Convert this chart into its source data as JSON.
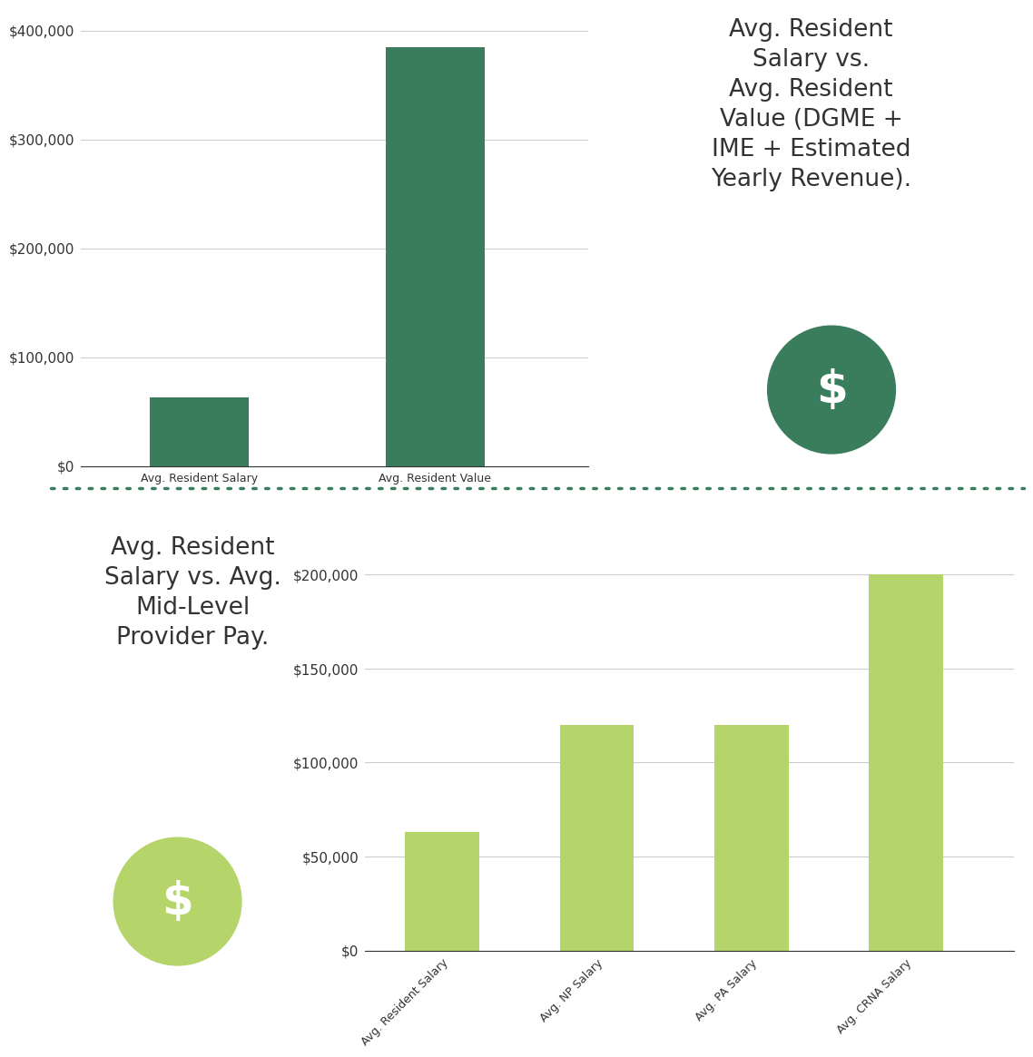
{
  "chart1": {
    "categories": [
      "Avg. Resident Salary",
      "Avg. Resident Value"
    ],
    "values": [
      63000,
      385000
    ],
    "bar_color": "#3a7d5c",
    "ylim": [
      0,
      420000
    ],
    "yticks": [
      0,
      100000,
      200000,
      300000,
      400000
    ],
    "ytick_labels": [
      "$0",
      "$100,000",
      "$200,000",
      "$300,000",
      "$400,000"
    ],
    "title": "Avg. Resident\nSalary vs.\nAvg. Resident\nValue (DGME +\nIME + Estimated\nYearly Revenue).",
    "title_fontsize": 19,
    "dollar_circle_color": "#3a7d5c"
  },
  "chart2": {
    "categories": [
      "Avg. Resident Salary",
      "Avg. NP Salary",
      "Avg. PA Salary",
      "Avg. CRNA Salary"
    ],
    "values": [
      63000,
      120000,
      120000,
      200000
    ],
    "bar_color": "#b5d56a",
    "ylim": [
      0,
      220000
    ],
    "yticks": [
      0,
      50000,
      100000,
      150000,
      200000
    ],
    "ytick_labels": [
      "$0",
      "$50,000",
      "$100,000",
      "$150,000",
      "$200,000"
    ],
    "title": "Avg. Resident\nSalary vs. Avg.\nMid-Level\nProvider Pay.",
    "title_fontsize": 19,
    "dollar_circle_color": "#b5d56a"
  },
  "separator_color": "#3a7d5c",
  "background_color": "#ffffff",
  "text_color": "#333333",
  "grid_color": "#cccccc",
  "tick_label_fontsize": 11,
  "category_fontsize": 9
}
